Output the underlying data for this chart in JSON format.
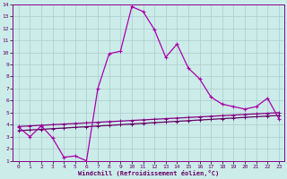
{
  "xlabel": "Windchill (Refroidissement éolien,°C)",
  "bg_color": "#ccecea",
  "grid_color": "#aaccca",
  "line_color_jagged": "#aa00aa",
  "line_color_reg1": "#880088",
  "line_color_reg2": "#660066",
  "xlim": [
    -0.5,
    23.5
  ],
  "ylim": [
    1,
    14
  ],
  "xticks": [
    0,
    1,
    2,
    3,
    4,
    5,
    6,
    7,
    8,
    9,
    10,
    11,
    12,
    13,
    14,
    15,
    16,
    17,
    18,
    19,
    20,
    21,
    22,
    23
  ],
  "yticks": [
    1,
    2,
    3,
    4,
    5,
    6,
    7,
    8,
    9,
    10,
    11,
    12,
    13,
    14
  ],
  "jagged_x": [
    0,
    1,
    2,
    3,
    4,
    5,
    6,
    7,
    8,
    9,
    10,
    11,
    12,
    13,
    14,
    15,
    16,
    17,
    18,
    19,
    20,
    21,
    22,
    23
  ],
  "jagged_y": [
    3.8,
    3.0,
    3.9,
    2.9,
    1.3,
    1.4,
    1.0,
    7.0,
    9.9,
    10.1,
    13.8,
    13.4,
    11.9,
    9.6,
    10.7,
    8.7,
    7.8,
    6.3,
    5.7,
    5.5,
    5.3,
    5.5,
    6.2,
    4.5
  ],
  "reg1_x": [
    0,
    1,
    2,
    3,
    4,
    5,
    6,
    7,
    8,
    9,
    10,
    11,
    12,
    13,
    14,
    15,
    16,
    17,
    18,
    19,
    20,
    21,
    22,
    23
  ],
  "reg1_y": [
    3.85,
    3.9,
    3.95,
    4.0,
    4.05,
    4.1,
    4.15,
    4.2,
    4.25,
    4.3,
    4.35,
    4.4,
    4.45,
    4.5,
    4.55,
    4.6,
    4.65,
    4.7,
    4.75,
    4.8,
    4.85,
    4.9,
    4.95,
    5.0
  ],
  "reg2_x": [
    0,
    1,
    2,
    3,
    4,
    5,
    6,
    7,
    8,
    9,
    10,
    11,
    12,
    13,
    14,
    15,
    16,
    17,
    18,
    19,
    20,
    21,
    22,
    23
  ],
  "reg2_y": [
    3.5,
    3.56,
    3.61,
    3.67,
    3.72,
    3.78,
    3.83,
    3.89,
    3.94,
    4.0,
    4.06,
    4.11,
    4.17,
    4.22,
    4.28,
    4.33,
    4.39,
    4.44,
    4.5,
    4.55,
    4.61,
    4.66,
    4.72,
    4.77
  ]
}
